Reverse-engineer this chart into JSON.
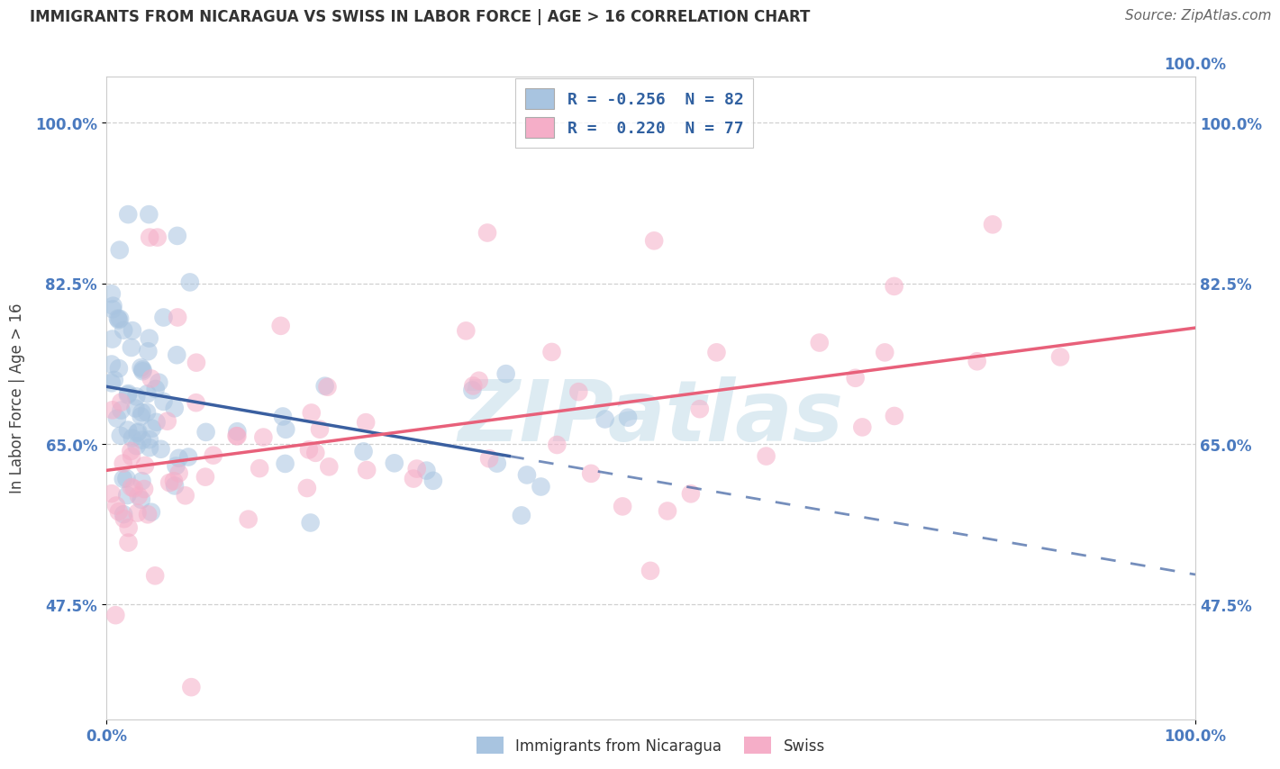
{
  "title": "IMMIGRANTS FROM NICARAGUA VS SWISS IN LABOR FORCE | AGE > 16 CORRELATION CHART",
  "source": "Source: ZipAtlas.com",
  "ylabel": "In Labor Force | Age > 16",
  "xlim": [
    0.0,
    1.0
  ],
  "ylim": [
    0.35,
    1.05
  ],
  "yticks": [
    0.475,
    0.65,
    0.825,
    1.0
  ],
  "ytick_labels": [
    "47.5%",
    "65.0%",
    "82.5%",
    "100.0%"
  ],
  "xticks": [
    0.0,
    1.0
  ],
  "xtick_labels": [
    "0.0%",
    "100.0%"
  ],
  "blue_color": "#a8c4e0",
  "pink_color": "#f5aec8",
  "blue_line_color": "#3a5fa0",
  "pink_line_color": "#e8607a",
  "watermark_text": "ZIPatlas",
  "watermark_color": "#d8e8f0",
  "blue_N": 82,
  "pink_N": 77,
  "blue_R": -0.256,
  "pink_R": 0.22,
  "legend1_labels": [
    "R = -0.256  N = 82",
    "R =  0.220  N = 77"
  ],
  "legend2_labels": [
    "Immigrants from Nicaragua",
    "Swiss"
  ],
  "title_fontsize": 12,
  "source_fontsize": 11,
  "tick_fontsize": 12,
  "ylabel_fontsize": 12,
  "tick_color": "#4a7abf",
  "grid_color": "#d0d0d0",
  "title_color": "#333333",
  "source_color": "#666666"
}
